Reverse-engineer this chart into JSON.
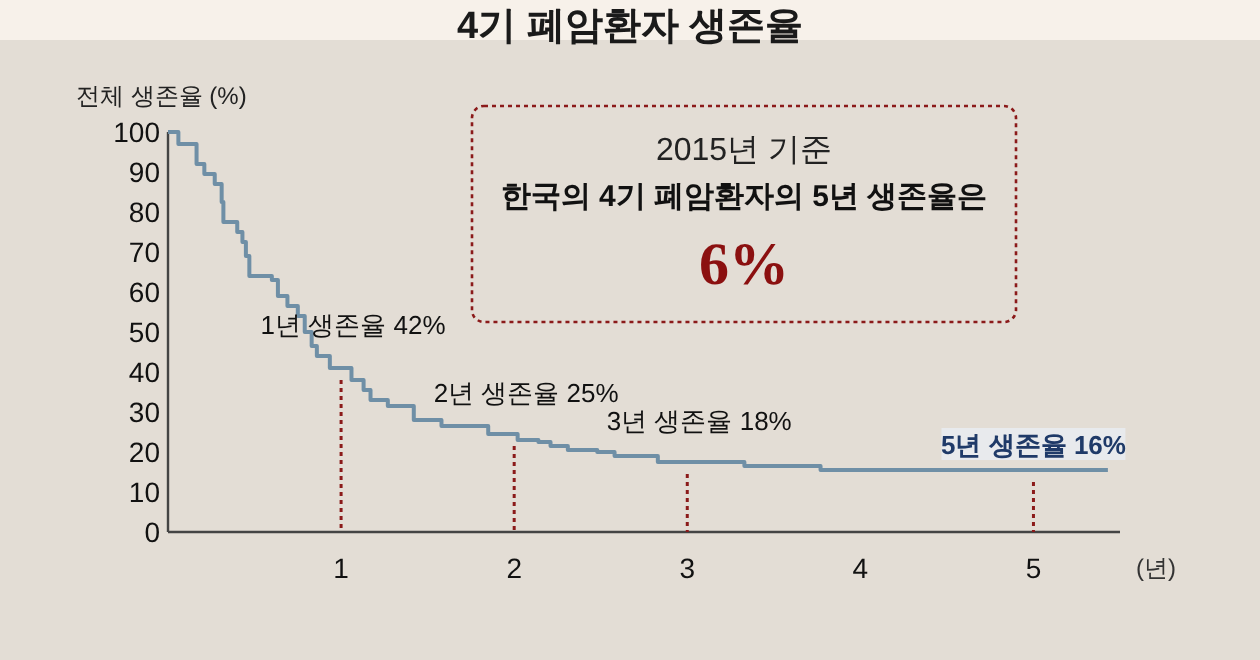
{
  "chart_data": {
    "type": "step",
    "title": "4기 폐암환자 생존율",
    "ylabel": "전체 생존율 (%)",
    "xlabel": "(년)",
    "x": [
      0,
      0.06,
      0.165,
      0.21,
      0.27,
      0.31,
      0.32,
      0.4,
      0.43,
      0.45,
      0.47,
      0.6,
      0.635,
      0.69,
      0.75,
      0.79,
      0.83,
      0.86,
      0.935,
      1.06,
      1.13,
      1.17,
      1.27,
      1.42,
      1.58,
      1.85,
      2.02,
      2.14,
      2.21,
      2.31,
      2.48,
      2.58,
      2.83,
      3.33,
      3.77,
      5.43
    ],
    "series": [
      {
        "color": "#6f8fa6",
        "values": [
          100,
          97,
          92,
          89.5,
          87,
          82.5,
          77.5,
          75,
          72.5,
          69,
          64,
          63,
          59,
          56.5,
          54,
          50,
          46.5,
          44,
          41,
          38,
          35.5,
          33,
          31.5,
          28,
          26.5,
          24.5,
          23,
          22.5,
          21.5,
          20.5,
          20,
          19,
          17.5,
          16.5,
          15.5,
          15.5
        ]
      }
    ],
    "xlim": [
      0,
      5.5
    ],
    "xticks": [
      1,
      2,
      3,
      4,
      5
    ],
    "ylim": [
      0,
      100
    ],
    "yticks": [
      0,
      10,
      20,
      30,
      40,
      50,
      60,
      70,
      80,
      90,
      100
    ],
    "grid": false,
    "ref_lines": [
      {
        "axis": "x",
        "value": 1,
        "color": "#8b1a1a",
        "line_style": "dotted"
      },
      {
        "axis": "x",
        "value": 2,
        "color": "#8b1a1a",
        "line_style": "dotted"
      },
      {
        "axis": "x",
        "value": 3,
        "color": "#8b1a1a",
        "line_style": "dotted"
      },
      {
        "axis": "x",
        "value": 5,
        "color": "#8b1a1a",
        "line_style": "dotted"
      }
    ],
    "annotations": [
      "2015년 기준",
      "한국의 4기 폐암환자의 5년 생존율은",
      "6%",
      {
        "text": "1년 생존율 42%",
        "x": 1,
        "y": 42
      },
      {
        "text": "2년 생존율 25%",
        "x": 2,
        "y": 25
      },
      {
        "text": "3년 생존율 18%",
        "x": 3,
        "y": 18
      },
      {
        "text": "5년 생존율 16%",
        "x": 5,
        "y": 16
      }
    ]
  }
}
